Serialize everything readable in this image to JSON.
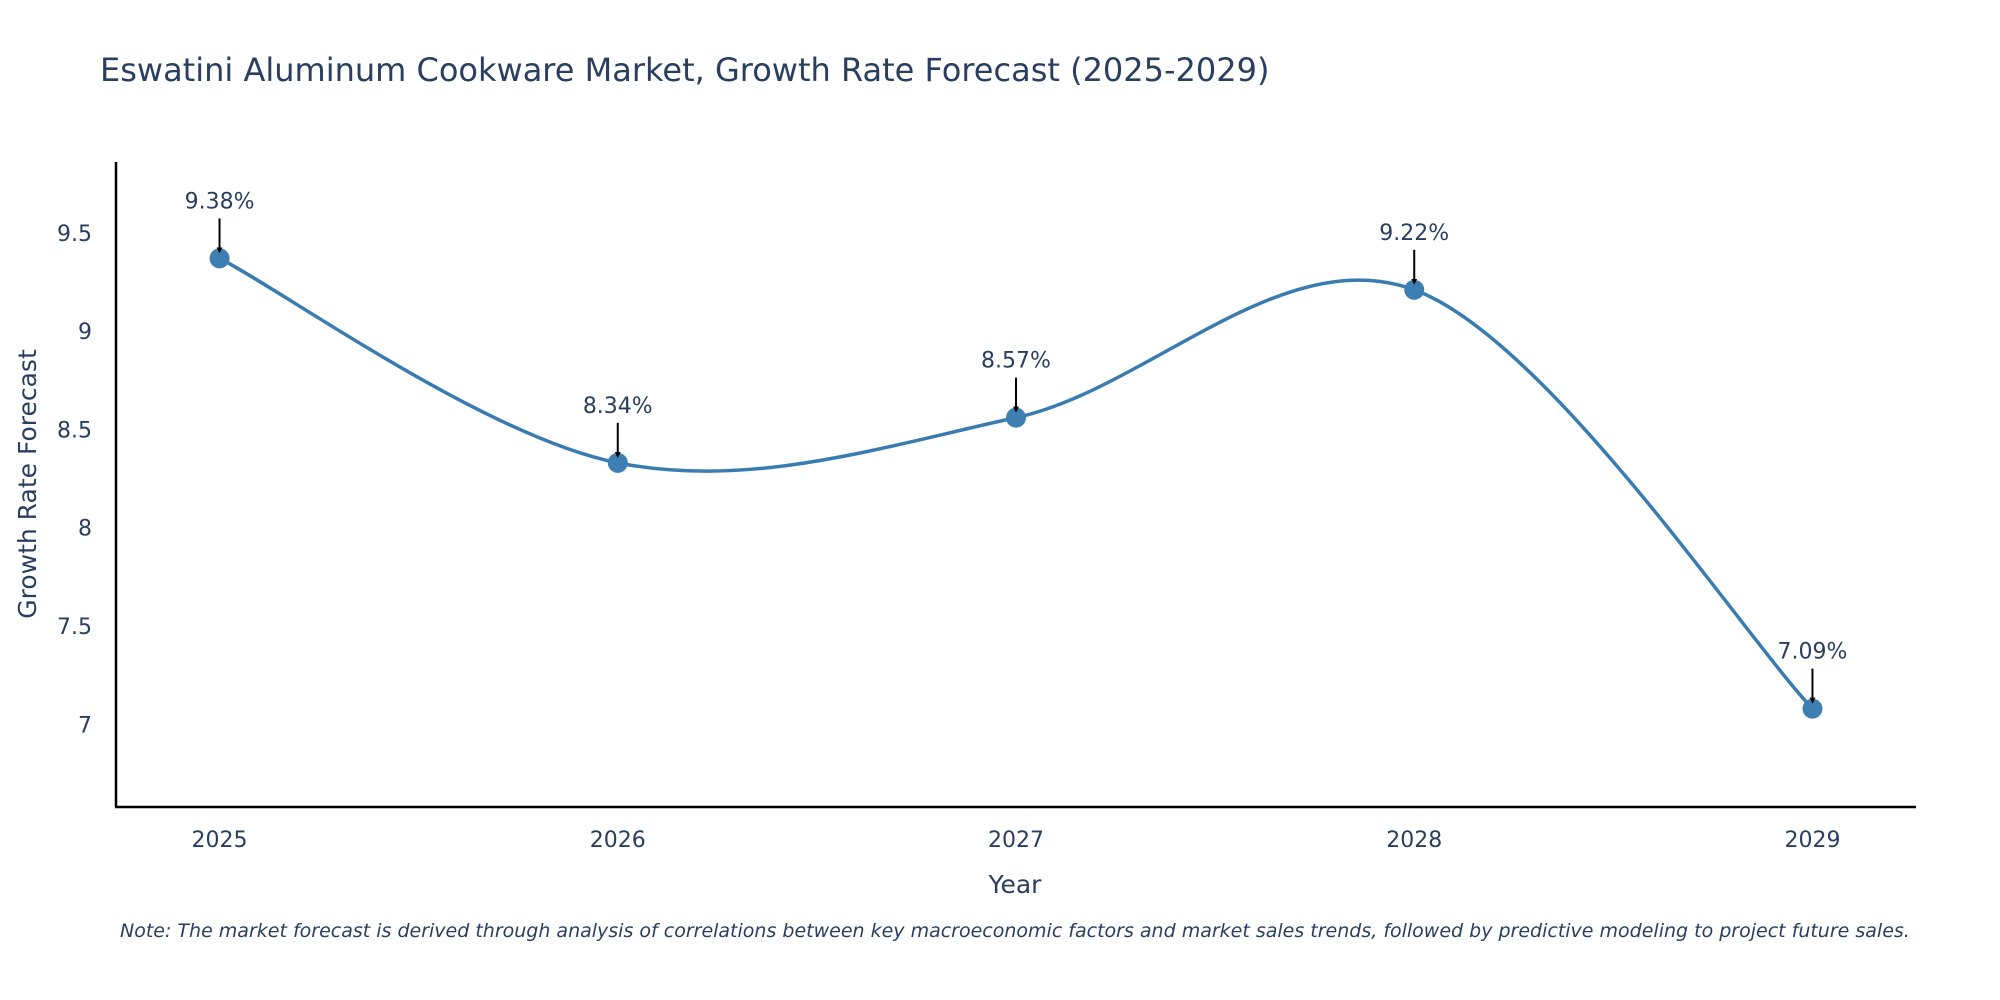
{
  "chart_data": {
    "type": "line",
    "title": "Eswatini Aluminum Cookware Market, Growth Rate Forecast (2025-2029)",
    "xlabel": "Year",
    "ylabel": "Growth Rate Forecast",
    "categories": [
      "2025",
      "2026",
      "2027",
      "2028",
      "2029"
    ],
    "values": [
      9.38,
      8.34,
      8.57,
      9.22,
      7.09
    ],
    "data_labels": [
      "9.38%",
      "8.34%",
      "8.57%",
      "9.22%",
      "7.09%"
    ],
    "yticks": [
      7,
      7.5,
      8,
      8.5,
      9,
      9.5
    ],
    "ytick_labels": [
      "7",
      "7.5",
      "8",
      "8.5",
      "9",
      "9.5"
    ],
    "ylim": [
      6.59,
      9.87
    ],
    "x_range": [
      2024.74,
      2029.26
    ],
    "line_color": "#3a7cb0",
    "marker_color": "#3e7fb3",
    "line_shape": "spline",
    "grid": false
  },
  "note": "Note: The market forecast is derived through analysis of correlations between key macroeconomic factors and market sales trends, followed by predictive modeling to project future sales."
}
